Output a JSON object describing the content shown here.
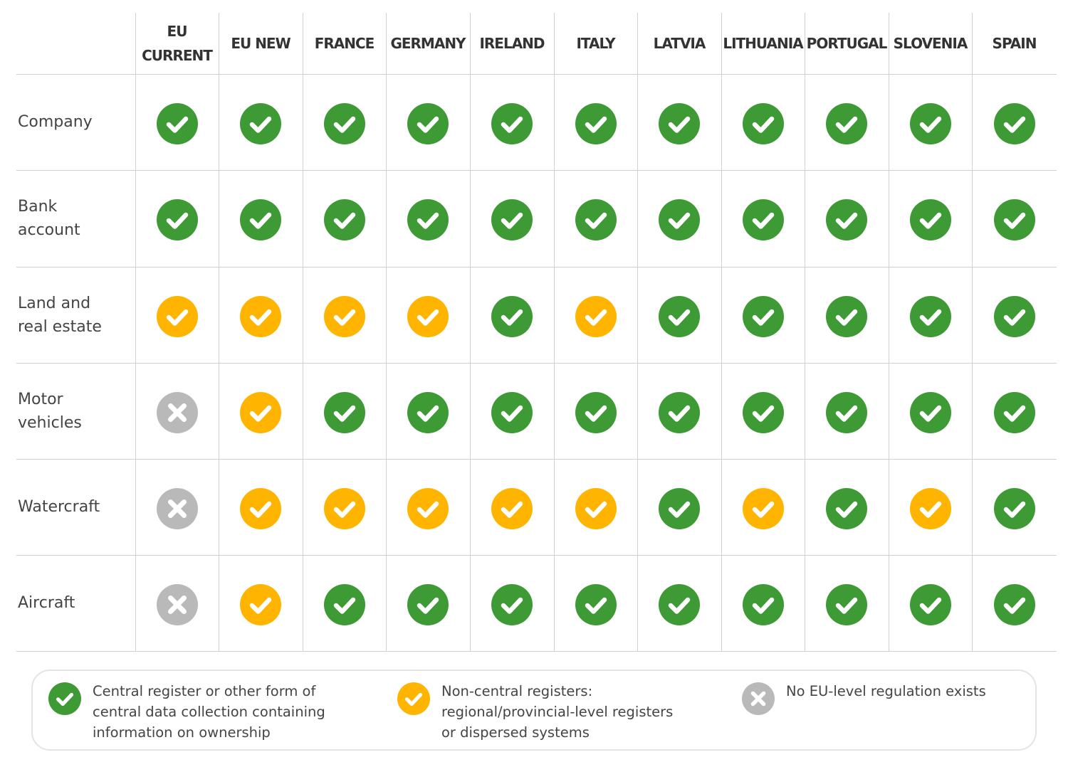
{
  "chart_data": {
    "type": "table",
    "columns": [
      "EU\nCURRENT",
      "EU NEW",
      "FRANCE",
      "GERMANY",
      "IRELAND",
      "ITALY",
      "LATVIA",
      "LITHUANIA",
      "PORTUGAL",
      "SLOVENIA",
      "SPAIN"
    ],
    "rows": [
      {
        "label": "Company",
        "values": [
          "central",
          "central",
          "central",
          "central",
          "central",
          "central",
          "central",
          "central",
          "central",
          "central",
          "central"
        ]
      },
      {
        "label": "Bank\naccount",
        "values": [
          "central",
          "central",
          "central",
          "central",
          "central",
          "central",
          "central",
          "central",
          "central",
          "central",
          "central"
        ]
      },
      {
        "label": "Land and\nreal estate",
        "values": [
          "non-central",
          "non-central",
          "non-central",
          "non-central",
          "central",
          "non-central",
          "central",
          "central",
          "central",
          "central",
          "central"
        ]
      },
      {
        "label": "Motor\nvehicles",
        "values": [
          "none",
          "non-central",
          "central",
          "central",
          "central",
          "central",
          "central",
          "central",
          "central",
          "central",
          "central"
        ]
      },
      {
        "label": "Watercraft",
        "values": [
          "none",
          "non-central",
          "non-central",
          "non-central",
          "non-central",
          "non-central",
          "central",
          "non-central",
          "central",
          "non-central",
          "central"
        ]
      },
      {
        "label": "Aircraft",
        "values": [
          "none",
          "non-central",
          "central",
          "central",
          "central",
          "central",
          "central",
          "central",
          "central",
          "central",
          "central"
        ]
      }
    ],
    "legend": [
      {
        "key": "central",
        "text": "Central register or other form of central data collection containing information on ownership",
        "icon": "check-icon",
        "color": "#3d9a35"
      },
      {
        "key": "non-central",
        "text": "Non-central registers: regional/provincial-level registers or dispersed systems",
        "icon": "check-icon",
        "color": "#ffb400"
      },
      {
        "key": "none",
        "text": "No EU-level regulation exists",
        "icon": "cross-icon",
        "color": "#b9b9b9"
      }
    ]
  }
}
